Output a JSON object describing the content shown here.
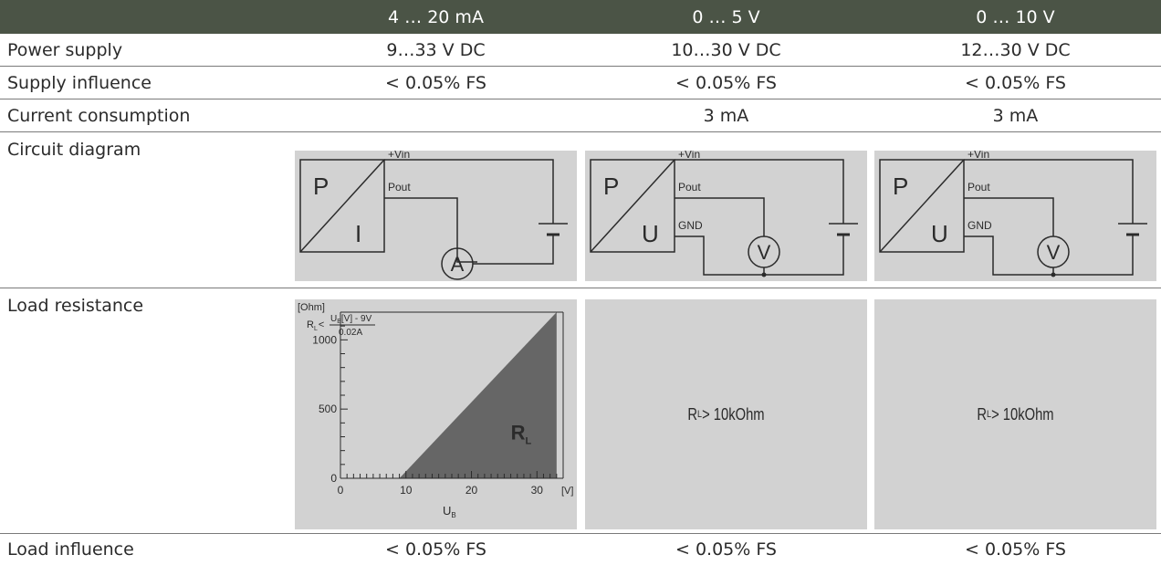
{
  "header": {
    "col1": "4 … 20 mA",
    "col2": "0 … 5 V",
    "col3": "0 … 10 V"
  },
  "rows": {
    "power_supply": {
      "label": "Power supply",
      "values": [
        "9…33 V DC",
        "10…30 V DC",
        "12…30 V DC"
      ]
    },
    "supply_influence": {
      "label": "Supply influence",
      "values": [
        "< 0.05% FS",
        "< 0.05% FS",
        "< 0.05% FS"
      ]
    },
    "current_consumption": {
      "label": "Current consumption",
      "values": [
        "",
        "3 mA",
        "3 mA"
      ]
    },
    "circuit_diagram": {
      "label": "Circuit diagram"
    },
    "load_resistance": {
      "label": "Load resistance"
    },
    "load_influence": {
      "label": "Load influence",
      "values": [
        "< 0.05% FS",
        "< 0.05% FS",
        "< 0.05% FS"
      ]
    }
  },
  "circuits": [
    {
      "in_label": "P",
      "out_label": "I",
      "vin": "+Vin",
      "pout": "Pout",
      "gnd": "",
      "meter": "A"
    },
    {
      "in_label": "P",
      "out_label": "U",
      "vin": "+Vin",
      "pout": "Pout",
      "gnd": "GND",
      "meter": "V"
    },
    {
      "in_label": "P",
      "out_label": "U",
      "vin": "+Vin",
      "pout": "Pout",
      "gnd": "GND",
      "meter": "V"
    }
  ],
  "load_text": {
    "col2": {
      "prefix": "R",
      "sub": "L",
      "suffix": " > 10kOhm"
    },
    "col3": {
      "prefix": "R",
      "sub": "L",
      "suffix": " > 10kOhm"
    }
  },
  "chart_data": {
    "type": "area",
    "ylabel": "[Ohm]",
    "xlabel_main": "U",
    "xlabel_sub": "B",
    "xunit": "[V]",
    "xlim": [
      0,
      34
    ],
    "ylim": [
      0,
      1200
    ],
    "x_ticks": [
      0,
      10,
      20,
      30
    ],
    "y_ticks": [
      0,
      500,
      1000
    ],
    "series": [
      {
        "x": [
          9,
          33,
          33
        ],
        "y": [
          0,
          1200,
          0
        ]
      }
    ],
    "area_label_main": "R",
    "area_label_sub": "L",
    "formula": {
      "lhs_main": "R",
      "lhs_sub": "L",
      "lhs_op": "<",
      "num_main": "U",
      "num_sub": "B",
      "num_rest": "[V] - 9V",
      "den": "0.02A"
    },
    "colors": {
      "area": "#666666",
      "panel": "#d2d2d2"
    }
  }
}
